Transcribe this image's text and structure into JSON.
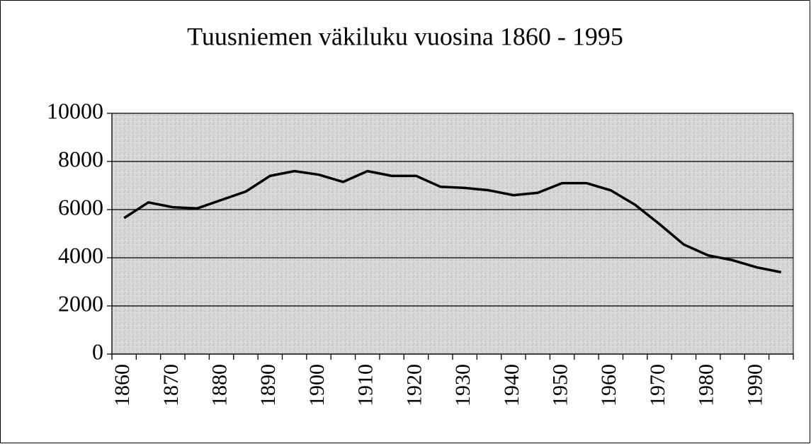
{
  "chart_data": {
    "type": "line",
    "title": "Tuusniemen väkiluku vuosina 1860 - 1995",
    "categories": [
      "1860",
      null,
      "1870",
      null,
      "1880",
      null,
      "1890",
      null,
      "1900",
      null,
      "1910",
      null,
      "1920",
      null,
      "1930",
      null,
      "1940",
      null,
      "1950",
      null,
      "1960",
      null,
      "1970",
      null,
      "1980",
      null,
      "1990",
      null
    ],
    "series": [
      {
        "name": "Väkiluku",
        "color": "#000000",
        "values": [
          5650,
          6300,
          6100,
          6050,
          6400,
          6750,
          7400,
          7600,
          7450,
          7150,
          7600,
          7400,
          7400,
          6950,
          6900,
          6800,
          6600,
          6700,
          7100,
          7100,
          6800,
          6200,
          5400,
          4550,
          4100,
          3900,
          3600,
          3400
        ]
      }
    ],
    "ylim": [
      0,
      10000
    ],
    "yticks": [
      0,
      2000,
      4000,
      6000,
      8000,
      10000
    ],
    "grid": true
  }
}
